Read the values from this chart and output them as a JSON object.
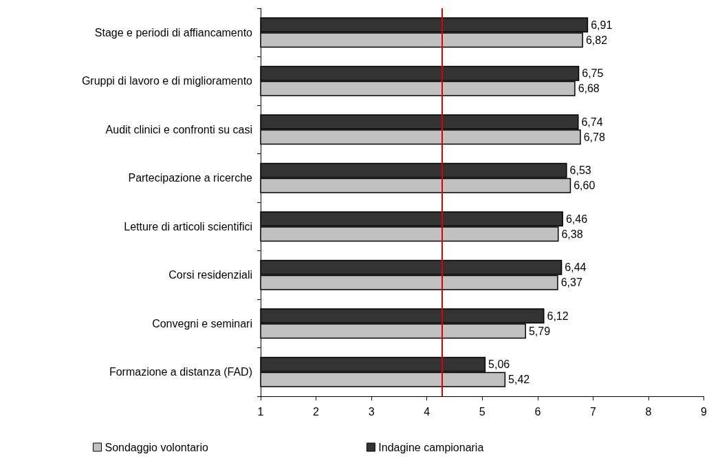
{
  "chart_data": {
    "type": "bar",
    "orientation": "horizontal",
    "categories": [
      "Stage e periodi di affiancamento",
      "Gruppi di lavoro e di miglioramento",
      "Audit clinici e confronti su casi",
      "Partecipazione a ricerche",
      "Letture di articoli scientifici",
      "Corsi residenziali",
      "Convegni e seminari",
      "Formazione a distanza (FAD)"
    ],
    "series": [
      {
        "name": "Indagine campionaria",
        "color": "#333333",
        "values": [
          6.91,
          6.75,
          6.74,
          6.53,
          6.46,
          6.44,
          6.12,
          5.06
        ],
        "value_labels": [
          "6,91",
          "6,75",
          "6,74",
          "6,53",
          "6,46",
          "6,44",
          "6,12",
          "5,06"
        ]
      },
      {
        "name": "Sondaggio volontario",
        "color": "#c0c0c0",
        "values": [
          6.82,
          6.68,
          6.78,
          6.6,
          6.38,
          6.37,
          5.79,
          5.42
        ],
        "value_labels": [
          "6,82",
          "6,68",
          "6,78",
          "6,60",
          "6,38",
          "6,37",
          "5,79",
          "5,42"
        ]
      }
    ],
    "xlim": [
      1,
      9
    ],
    "xticks": [
      1,
      2,
      3,
      4,
      5,
      6,
      7,
      8,
      9
    ],
    "ref_lines": [
      {
        "axis": "x",
        "value": 4.27,
        "color": "#e00000"
      }
    ],
    "grid": false,
    "legend": "bottom"
  }
}
